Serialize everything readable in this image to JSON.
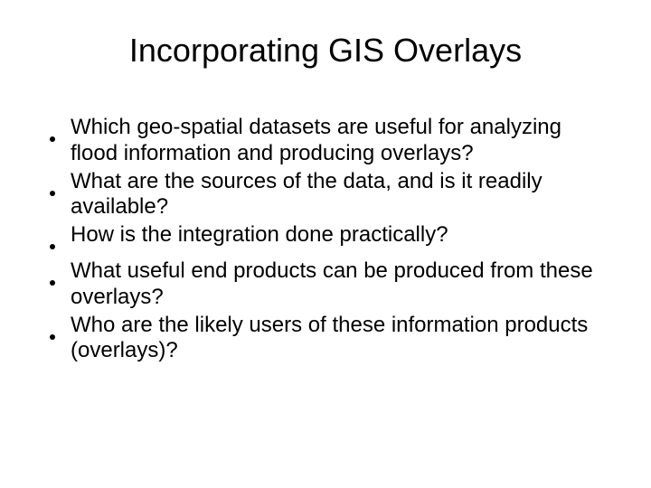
{
  "slide": {
    "title": "Incorporating GIS Overlays",
    "bullets": [
      "Which geo-spatial datasets are useful for analyzing flood information and producing overlays?",
      "What are the sources of the data, and is it readily available?",
      "How is the integration done practically?",
      "What useful end products can be produced from these overlays?",
      "Who are the likely users of these information products (overlays)?"
    ],
    "colors": {
      "background": "#ffffff",
      "text": "#000000",
      "bullet": "#000000"
    },
    "typography": {
      "title_fontsize": 36,
      "body_fontsize": 24,
      "font_family": "Arial"
    }
  }
}
